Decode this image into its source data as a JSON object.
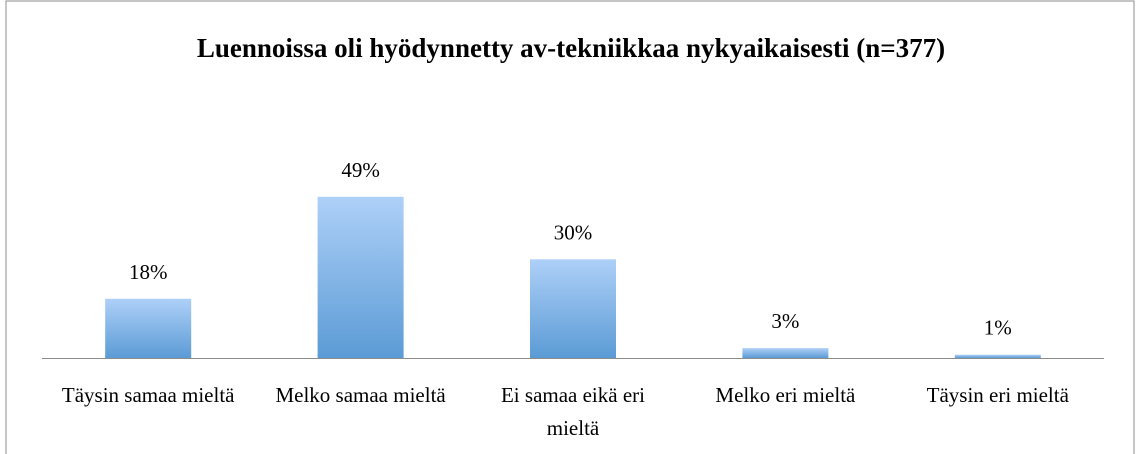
{
  "chart_data": {
    "type": "bar",
    "title": "Luennoissa oli hyödynnetty av-tekniikkaa nykyaikaisesti (n=377)",
    "categories": [
      "Täysin samaa mieltä",
      "Melko samaa mieltä",
      "Ei samaa eikä eri mieltä",
      "Melko eri mieltä",
      "Täysin eri mieltä"
    ],
    "values": [
      18,
      49,
      30,
      3,
      1
    ],
    "value_labels": [
      "18%",
      "49%",
      "30%",
      "3%",
      "1%"
    ],
    "color": "#5b9bd5"
  }
}
